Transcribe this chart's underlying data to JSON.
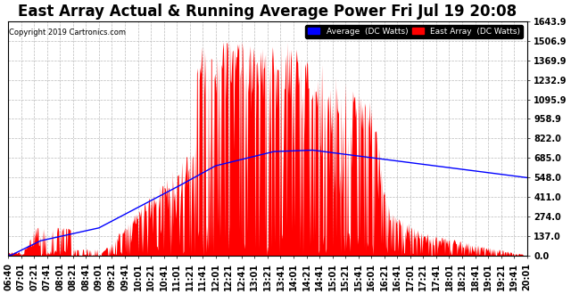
{
  "title": "East Array Actual & Running Average Power Fri Jul 19 20:08",
  "copyright": "Copyright 2019 Cartronics.com",
  "legend_labels": [
    "Average  (DC Watts)",
    "East Array  (DC Watts)"
  ],
  "y_ticks": [
    0.0,
    137.0,
    274.0,
    411.0,
    548.0,
    685.0,
    822.0,
    958.9,
    1095.9,
    1232.9,
    1369.9,
    1506.9,
    1643.9
  ],
  "y_max": 1643.9,
  "y_min": 0.0,
  "background_color": "#ffffff",
  "plot_bg_color": "#ffffff",
  "grid_color": "#bbbbbb",
  "title_fontsize": 12,
  "axis_fontsize": 7,
  "x_tick_labels": [
    "06:40",
    "07:01",
    "07:21",
    "07:41",
    "08:01",
    "08:21",
    "08:41",
    "09:01",
    "09:21",
    "09:41",
    "10:01",
    "10:21",
    "10:41",
    "11:01",
    "11:21",
    "11:41",
    "12:01",
    "12:21",
    "12:41",
    "13:01",
    "13:21",
    "13:41",
    "14:01",
    "14:21",
    "14:41",
    "15:01",
    "15:21",
    "15:41",
    "16:01",
    "16:21",
    "16:41",
    "17:01",
    "17:21",
    "17:41",
    "18:01",
    "18:21",
    "18:41",
    "19:01",
    "19:21",
    "19:41",
    "20:01"
  ]
}
